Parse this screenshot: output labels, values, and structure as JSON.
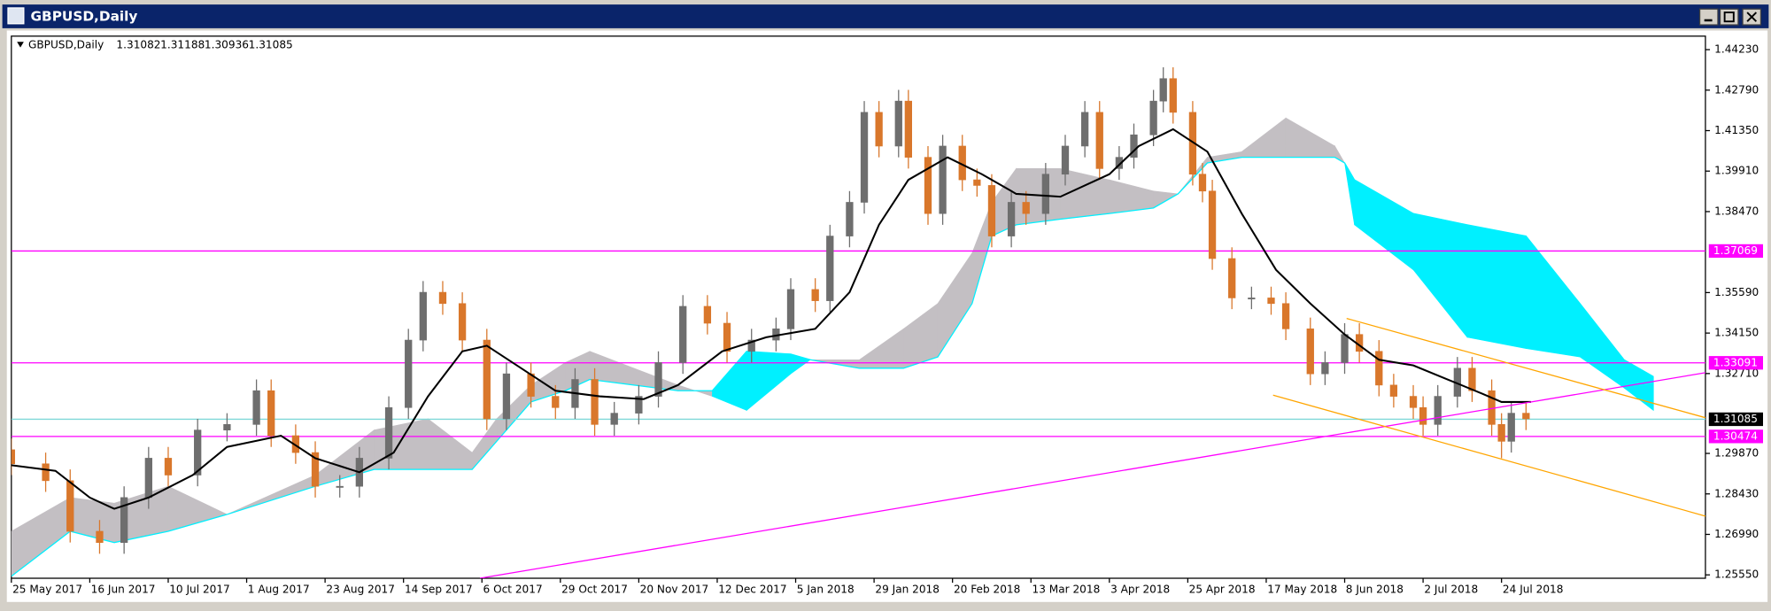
{
  "window_title": "GBPUSD,Daily",
  "chart_data": {
    "type": "candlestick",
    "title": "GBPUSD,Daily",
    "ohlc": [
      1.31082,
      1.31188,
      1.30936,
      1.31085
    ],
    "up_color": "#6e6e6e",
    "down_color": "#d9772b",
    "xlim": [
      0,
      345.6
    ],
    "ylim": [
      1.2543,
      1.4471
    ],
    "xticks": [
      {
        "value": 0,
        "label": "25 May 2017"
      },
      {
        "value": 16,
        "label": "16 Jun 2017"
      },
      {
        "value": 32,
        "label": "10 Jul 2017"
      },
      {
        "value": 48,
        "label": "1 Aug 2017"
      },
      {
        "value": 64,
        "label": "23 Aug 2017"
      },
      {
        "value": 80,
        "label": "14 Sep 2017"
      },
      {
        "value": 96,
        "label": "6 Oct 2017"
      },
      {
        "value": 112,
        "label": "29 Oct 2017"
      },
      {
        "value": 128,
        "label": "20 Nov 2017"
      },
      {
        "value": 144,
        "label": "12 Dec 2017"
      },
      {
        "value": 160,
        "label": "5 Jan 2018"
      },
      {
        "value": 176,
        "label": "29 Jan 2018"
      },
      {
        "value": 192,
        "label": "20 Feb 2018"
      },
      {
        "value": 208,
        "label": "13 Mar 2018"
      },
      {
        "value": 224,
        "label": "3 Apr 2018"
      },
      {
        "value": 240,
        "label": "25 Apr 2018"
      },
      {
        "value": 256,
        "label": "17 May 2018"
      },
      {
        "value": 272,
        "label": "8 Jun 2018"
      },
      {
        "value": 288,
        "label": "2 Jul 2018"
      },
      {
        "value": 304,
        "label": "24 Jul 2018"
      }
    ],
    "yticks": [
      {
        "value": 1.4423,
        "label": "1.44230"
      },
      {
        "value": 1.4279,
        "label": "1.42790"
      },
      {
        "value": 1.4135,
        "label": "1.41350"
      },
      {
        "value": 1.3991,
        "label": "1.39910"
      },
      {
        "value": 1.3847,
        "label": "1.38470"
      },
      {
        "value": 1.3559,
        "label": "1.35590"
      },
      {
        "value": 1.3415,
        "label": "1.34150"
      },
      {
        "value": 1.3271,
        "label": "1.32710"
      },
      {
        "value": 1.2987,
        "label": "1.29870"
      },
      {
        "value": 1.2843,
        "label": "1.28430"
      },
      {
        "value": 1.2699,
        "label": "1.26990"
      },
      {
        "value": 1.2555,
        "label": "1.25550"
      }
    ],
    "x": [
      0,
      7,
      12,
      18,
      23,
      28,
      32,
      38,
      44,
      50,
      53,
      58,
      62,
      67,
      71,
      77,
      81,
      84,
      88,
      92,
      97,
      101,
      106,
      111,
      115,
      119,
      123,
      128,
      132,
      137,
      142,
      146,
      151,
      156,
      159,
      164,
      167,
      171,
      174,
      177,
      181,
      183,
      187,
      190,
      194,
      197,
      200,
      204,
      207,
      211,
      215,
      219,
      222,
      226,
      229,
      233,
      235,
      237,
      241,
      243,
      245,
      249,
      253,
      257,
      260,
      265,
      268,
      272,
      275,
      279,
      282,
      286,
      288,
      291,
      295,
      298,
      302,
      304,
      306,
      309
    ],
    "open": [
      1.3,
      1.295,
      1.289,
      1.271,
      1.267,
      1.283,
      1.297,
      1.291,
      1.307,
      1.309,
      1.321,
      1.305,
      1.299,
      1.287,
      1.287,
      1.297,
      1.315,
      1.339,
      1.356,
      1.352,
      1.339,
      1.311,
      1.327,
      1.319,
      1.315,
      1.325,
      1.309,
      1.313,
      1.319,
      1.331,
      1.351,
      1.345,
      1.335,
      1.339,
      1.343,
      1.357,
      1.353,
      1.376,
      1.388,
      1.42,
      1.408,
      1.424,
      1.404,
      1.384,
      1.408,
      1.396,
      1.394,
      1.376,
      1.388,
      1.384,
      1.398,
      1.408,
      1.42,
      1.4,
      1.404,
      1.412,
      1.424,
      1.432,
      1.42,
      1.398,
      1.392,
      1.368,
      1.354,
      1.354,
      1.352,
      1.343,
      1.327,
      1.331,
      1.341,
      1.335,
      1.323,
      1.319,
      1.315,
      1.309,
      1.319,
      1.329,
      1.321,
      1.309,
      1.303,
      1.313
    ],
    "high": [
      1.304,
      1.299,
      1.293,
      1.275,
      1.287,
      1.301,
      1.301,
      1.311,
      1.313,
      1.325,
      1.325,
      1.309,
      1.303,
      1.291,
      1.301,
      1.319,
      1.343,
      1.36,
      1.36,
      1.356,
      1.343,
      1.331,
      1.331,
      1.323,
      1.329,
      1.329,
      1.317,
      1.323,
      1.335,
      1.355,
      1.355,
      1.349,
      1.343,
      1.347,
      1.361,
      1.361,
      1.38,
      1.392,
      1.424,
      1.424,
      1.428,
      1.428,
      1.408,
      1.412,
      1.412,
      1.4,
      1.398,
      1.392,
      1.392,
      1.402,
      1.412,
      1.424,
      1.424,
      1.408,
      1.416,
      1.428,
      1.436,
      1.436,
      1.424,
      1.402,
      1.396,
      1.372,
      1.358,
      1.358,
      1.356,
      1.347,
      1.335,
      1.345,
      1.345,
      1.339,
      1.327,
      1.323,
      1.319,
      1.323,
      1.333,
      1.333,
      1.325,
      1.313,
      1.317,
      1.317
    ],
    "low": [
      1.291,
      1.285,
      1.267,
      1.263,
      1.263,
      1.279,
      1.287,
      1.287,
      1.303,
      1.305,
      1.301,
      1.295,
      1.283,
      1.283,
      1.283,
      1.293,
      1.311,
      1.335,
      1.348,
      1.335,
      1.307,
      1.307,
      1.315,
      1.311,
      1.311,
      1.305,
      1.305,
      1.309,
      1.315,
      1.327,
      1.341,
      1.331,
      1.331,
      1.335,
      1.339,
      1.349,
      1.349,
      1.372,
      1.384,
      1.404,
      1.404,
      1.4,
      1.38,
      1.38,
      1.392,
      1.39,
      1.372,
      1.372,
      1.38,
      1.38,
      1.394,
      1.404,
      1.396,
      1.396,
      1.4,
      1.408,
      1.42,
      1.416,
      1.394,
      1.388,
      1.364,
      1.35,
      1.35,
      1.348,
      1.339,
      1.323,
      1.323,
      1.327,
      1.331,
      1.319,
      1.315,
      1.311,
      1.305,
      1.305,
      1.315,
      1.317,
      1.305,
      1.297,
      1.299,
      1.307
    ],
    "close": [
      1.295,
      1.289,
      1.271,
      1.267,
      1.283,
      1.297,
      1.291,
      1.307,
      1.309,
      1.321,
      1.305,
      1.299,
      1.287,
      1.287,
      1.297,
      1.315,
      1.339,
      1.356,
      1.352,
      1.339,
      1.311,
      1.327,
      1.319,
      1.315,
      1.325,
      1.309,
      1.313,
      1.319,
      1.331,
      1.351,
      1.345,
      1.335,
      1.339,
      1.343,
      1.357,
      1.353,
      1.376,
      1.388,
      1.42,
      1.408,
      1.424,
      1.404,
      1.384,
      1.408,
      1.396,
      1.394,
      1.376,
      1.388,
      1.384,
      1.398,
      1.408,
      1.42,
      1.4,
      1.404,
      1.412,
      1.424,
      1.432,
      1.42,
      1.398,
      1.392,
      1.368,
      1.354,
      1.354,
      1.352,
      1.343,
      1.327,
      1.331,
      1.341,
      1.335,
      1.323,
      1.319,
      1.315,
      1.309,
      1.319,
      1.329,
      1.321,
      1.309,
      1.303,
      1.313,
      1.311
    ],
    "cloud": {
      "colors": [
        "#c3bfc3",
        "#00f0ff"
      ],
      "x": [
        0,
        12,
        21,
        32,
        44,
        62,
        74,
        85,
        94,
        99,
        106,
        113,
        118,
        127,
        136,
        143,
        150,
        159,
        163,
        173,
        182,
        189,
        196,
        200,
        205,
        214,
        224,
        233,
        238,
        244,
        251,
        260,
        270,
        272,
        274,
        286,
        297,
        309,
        320,
        329,
        335
      ],
      "span_a": [
        1.255,
        1.271,
        1.267,
        1.271,
        1.277,
        1.287,
        1.293,
        1.293,
        1.293,
        1.303,
        1.317,
        1.321,
        1.325,
        1.323,
        1.321,
        1.321,
        1.335,
        1.334,
        1.332,
        1.329,
        1.329,
        1.333,
        1.352,
        1.376,
        1.38,
        1.382,
        1.384,
        1.386,
        1.391,
        1.402,
        1.404,
        1.404,
        1.404,
        1.402,
        1.396,
        1.384,
        1.38,
        1.376,
        1.352,
        1.332,
        1.326
      ],
      "span_b": [
        1.271,
        1.283,
        1.281,
        1.287,
        1.277,
        1.291,
        1.307,
        1.311,
        1.299,
        1.311,
        1.323,
        1.331,
        1.335,
        1.329,
        1.323,
        1.319,
        1.314,
        1.327,
        1.332,
        1.332,
        1.343,
        1.352,
        1.37,
        1.388,
        1.4,
        1.4,
        1.396,
        1.392,
        1.391,
        1.404,
        1.406,
        1.418,
        1.408,
        1.402,
        1.38,
        1.364,
        1.34,
        1.336,
        1.333,
        1.322,
        1.314
      ]
    },
    "moving_average": {
      "color": "#000000",
      "x": [
        0,
        9,
        16,
        21,
        28,
        37,
        44,
        55,
        62,
        71,
        78,
        85,
        92,
        97,
        104,
        111,
        120,
        129,
        136,
        145,
        154,
        164,
        171,
        177,
        183,
        191,
        198,
        205,
        214,
        224,
        230,
        237,
        244,
        251,
        258,
        265,
        272,
        279,
        286,
        293,
        300,
        304,
        310
      ],
      "values": [
        1.2945,
        1.2925,
        1.283,
        1.279,
        1.283,
        1.291,
        1.301,
        1.305,
        1.297,
        1.292,
        1.299,
        1.319,
        1.335,
        1.337,
        1.329,
        1.321,
        1.319,
        1.318,
        1.323,
        1.335,
        1.34,
        1.343,
        1.356,
        1.38,
        1.396,
        1.404,
        1.398,
        1.391,
        1.39,
        1.398,
        1.408,
        1.414,
        1.406,
        1.384,
        1.364,
        1.352,
        1.341,
        1.332,
        1.33,
        1.325,
        1.32,
        1.317,
        1.317
      ]
    },
    "levels": [
      {
        "value": 1.37069,
        "color": "#ff00ff"
      },
      {
        "value": 1.33091,
        "color": "#ff00ff"
      },
      {
        "value": 1.30474,
        "color": "#ff00ff"
      },
      {
        "value": 1.31085,
        "color": "#000000"
      }
    ],
    "trendlines": [
      {
        "color": "#ff00ff",
        "x": [
          95.6,
          345.6
        ],
        "values": [
          1.2543,
          1.3274
        ]
      },
      {
        "color": "#ffa500",
        "x": [
          272.4,
          345.6
        ],
        "values": [
          1.3467,
          1.3114
        ]
      },
      {
        "color": "#ffa500",
        "x": [
          257.4,
          345.6
        ],
        "values": [
          1.3194,
          1.2764
        ]
      }
    ]
  }
}
